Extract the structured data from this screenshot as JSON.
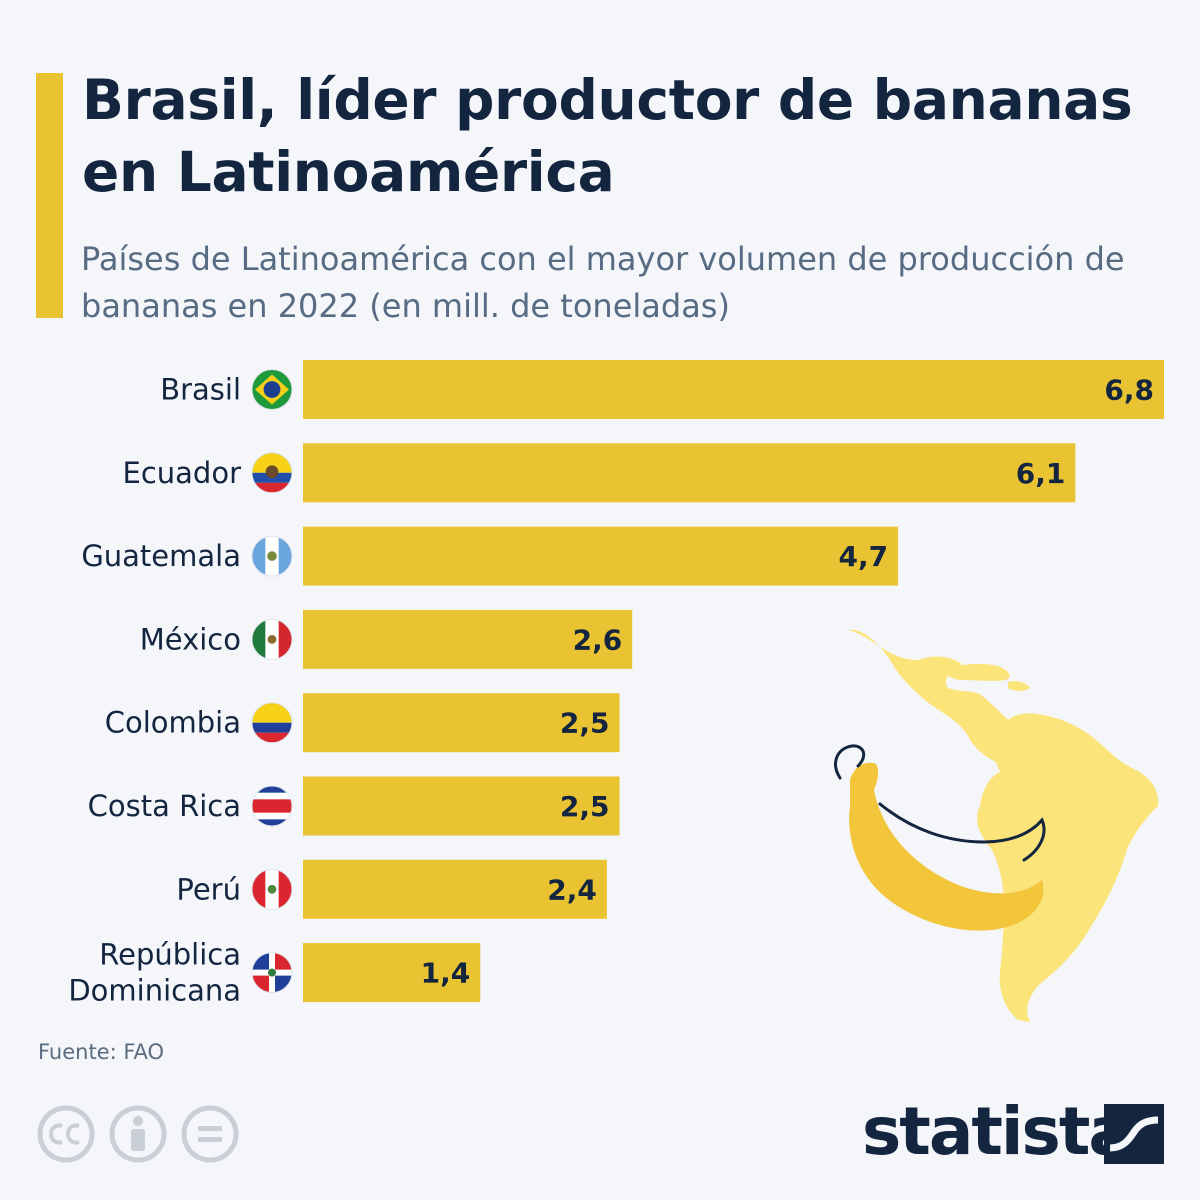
{
  "title": "Brasil, líder productor de bananas en Latinoamérica",
  "subtitle": "Países de Latinoamérica con el mayor volumen de producción de bananas en 2022 (en mill. de toneladas)",
  "source": "Fuente: FAO",
  "brand": "statista",
  "colors": {
    "bar": "#e9c331",
    "accent": "#e9c331",
    "text": "#13253f",
    "map": "#fbe47a",
    "banana": "#f2c53a"
  },
  "chart_data": {
    "type": "bar",
    "orientation": "horizontal",
    "categories": [
      "Brasil",
      "Ecuador",
      "Guatemala",
      "México",
      "Colombia",
      "Costa Rica",
      "Perú",
      "República Dominicana"
    ],
    "values": [
      6.8,
      6.1,
      4.7,
      2.6,
      2.5,
      2.5,
      2.4,
      1.4
    ],
    "value_labels": [
      "6,8",
      "6,1",
      "4,7",
      "2,6",
      "2,5",
      "2,5",
      "2,4",
      "1,4"
    ],
    "label_lines": [
      [
        "Brasil"
      ],
      [
        "Ecuador"
      ],
      [
        "Guatemala"
      ],
      [
        "México"
      ],
      [
        "Colombia"
      ],
      [
        "Costa Rica"
      ],
      [
        "Perú"
      ],
      [
        "República",
        "Dominicana"
      ]
    ],
    "flags": [
      "brazil-flag-icon",
      "ecuador-flag-icon",
      "guatemala-flag-icon",
      "mexico-flag-icon",
      "colombia-flag-icon",
      "costa-rica-flag-icon",
      "peru-flag-icon",
      "dominican-republic-flag-icon"
    ],
    "xlim": [
      0,
      6.8
    ],
    "grid": false,
    "legend": "none"
  }
}
